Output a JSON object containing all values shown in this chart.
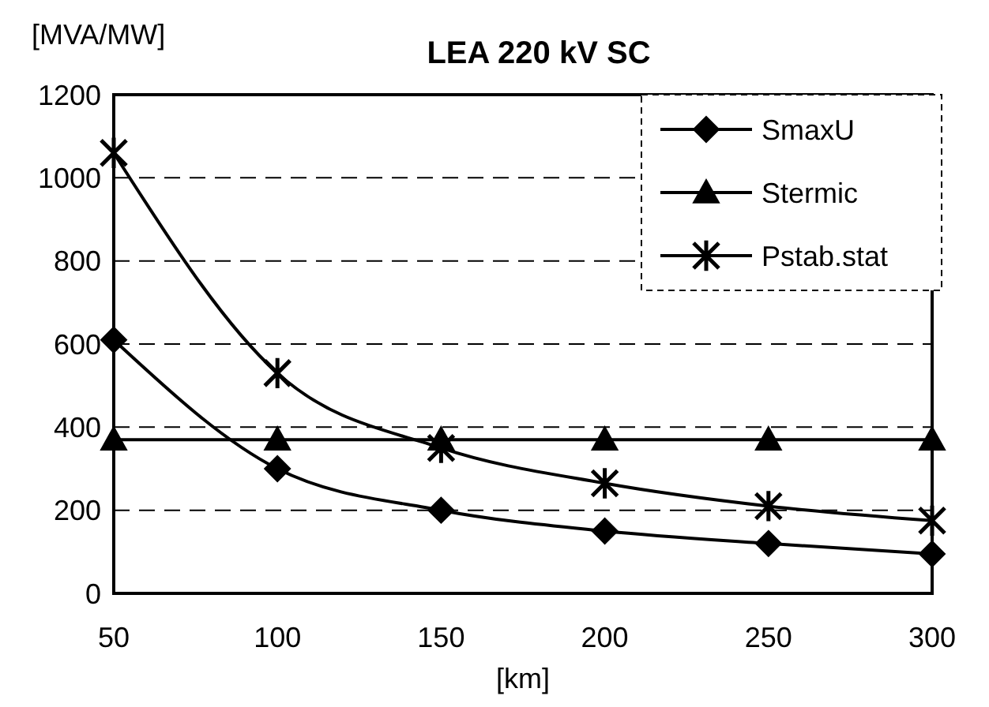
{
  "chart_data": {
    "type": "line",
    "title": "LEA 220 kV SC",
    "xlabel": "[km]",
    "ylabel": "[MVA/MW]",
    "x": [
      50,
      100,
      150,
      200,
      250,
      300
    ],
    "xlim": [
      50,
      300
    ],
    "xticks": [
      50,
      100,
      150,
      200,
      250,
      300
    ],
    "ylim": [
      0,
      1200
    ],
    "yticks": [
      0,
      200,
      400,
      600,
      800,
      1000,
      1200
    ],
    "grid": "y",
    "legend": "top right",
    "line_style": "solid",
    "series": [
      {
        "name": "SmaxU",
        "color": "#000000",
        "marker": "diamond",
        "values": [
          610,
          300,
          200,
          150,
          120,
          95
        ]
      },
      {
        "name": "Stermic",
        "color": "#000000",
        "marker": "triangle",
        "values": [
          370,
          370,
          370,
          370,
          370,
          370
        ]
      },
      {
        "name": "Pstab.stat",
        "color": "#000000",
        "marker": "cross",
        "values": [
          1060,
          530,
          350,
          265,
          210,
          175
        ]
      }
    ]
  }
}
